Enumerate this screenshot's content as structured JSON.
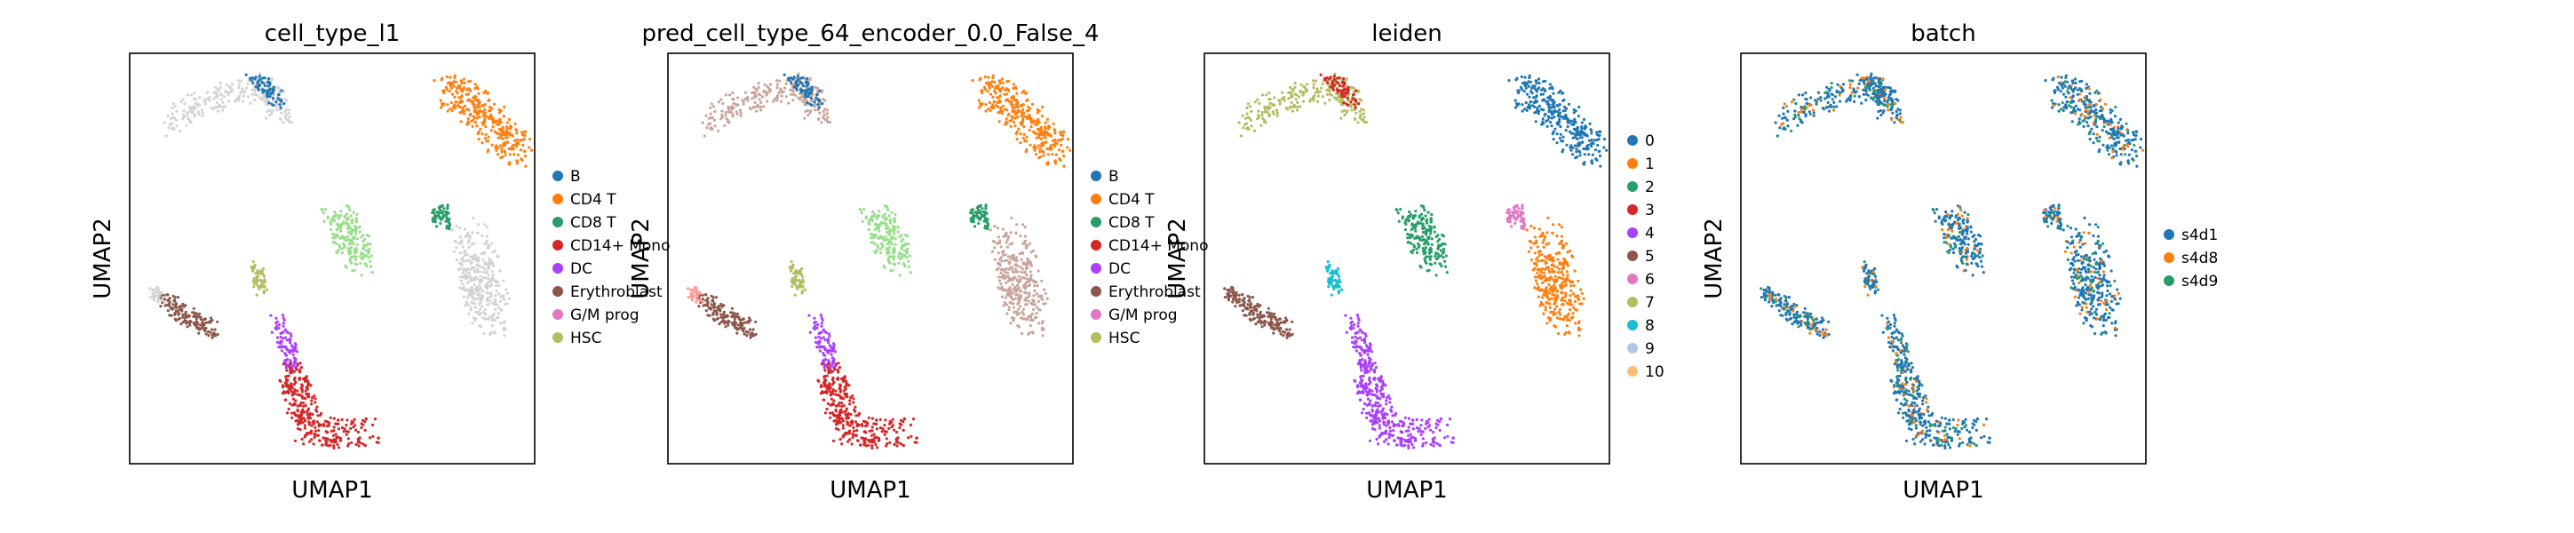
{
  "colors": {
    "tab10": [
      "#1f77b4",
      "#ff7f0e",
      "#279e68",
      "#d62728",
      "#aa40fc",
      "#8c564b",
      "#e377c2",
      "#b5bd61",
      "#17becf",
      "#aec7e8",
      "#ffbb78"
    ],
    "unlabeled": "#d3d3d3",
    "pred_c1": "#c9a59c",
    "pred_c2": "#98df8a",
    "pred_c3": "#ff9896",
    "pred_c4": "#f7b6d2"
  },
  "chart_data": [
    {
      "type": "scatter",
      "title": "cell_type_l1",
      "xlabel": "UMAP1",
      "ylabel": "UMAP2",
      "legend": {
        "placement": "right",
        "entries": [
          {
            "label": "B",
            "color": "#1f77b4"
          },
          {
            "label": "CD4 T",
            "color": "#ff7f0e"
          },
          {
            "label": "CD8 T",
            "color": "#279e68"
          },
          {
            "label": "CD14+ Mono",
            "color": "#d62728"
          },
          {
            "label": "DC",
            "color": "#aa40fc"
          },
          {
            "label": "Erythroblast",
            "color": "#8c564b"
          },
          {
            "label": "G/M prog",
            "color": "#e377c2"
          },
          {
            "label": "HSC",
            "color": "#b5bd61"
          }
        ]
      },
      "clusters": [
        {
          "name": "top-left arm",
          "color": "#d3d3d3"
        },
        {
          "name": "top-left tip",
          "color": "#1f77b4"
        },
        {
          "name": "top-right blob",
          "color": "#ff7f0e"
        },
        {
          "name": "center blob",
          "color": "#98df8a"
        },
        {
          "name": "right small",
          "color": "#279e68"
        },
        {
          "name": "right stream",
          "color": "#d3d3d3"
        },
        {
          "name": "left arm",
          "color": "#8c564b"
        },
        {
          "name": "left tip",
          "color": "#d3d3d3"
        },
        {
          "name": "small mid",
          "color": "#b5bd61"
        },
        {
          "name": "purple link",
          "color": "#aa40fc"
        },
        {
          "name": "bottom plume",
          "color": "#d62728"
        }
      ]
    },
    {
      "type": "scatter",
      "title": "pred_cell_type_64_encoder_0.0_False_4",
      "xlabel": "UMAP1",
      "ylabel": "UMAP2",
      "legend": {
        "placement": "right",
        "entries": [
          {
            "label": "B",
            "color": "#1f77b4"
          },
          {
            "label": "CD4 T",
            "color": "#ff7f0e"
          },
          {
            "label": "CD8 T",
            "color": "#279e68"
          },
          {
            "label": "CD14+ Mono",
            "color": "#d62728"
          },
          {
            "label": "DC",
            "color": "#aa40fc"
          },
          {
            "label": "Erythroblast",
            "color": "#8c564b"
          },
          {
            "label": "G/M prog",
            "color": "#e377c2"
          },
          {
            "label": "HSC",
            "color": "#b5bd61"
          }
        ]
      },
      "clusters": [
        {
          "name": "top-left arm",
          "color": "#c9a59c"
        },
        {
          "name": "top-left tip",
          "color": "#1f77b4"
        },
        {
          "name": "top-right blob",
          "color": "#ff7f0e"
        },
        {
          "name": "center blob",
          "color": "#98df8a"
        },
        {
          "name": "right small",
          "color": "#279e68"
        },
        {
          "name": "right stream",
          "color": "#c9a59c"
        },
        {
          "name": "left arm",
          "color": "#8c564b"
        },
        {
          "name": "left tip",
          "color": "#ff9896"
        },
        {
          "name": "small mid",
          "color": "#b5bd61"
        },
        {
          "name": "purple link",
          "color": "#aa40fc"
        },
        {
          "name": "bottom plume",
          "color": "#d62728"
        }
      ]
    },
    {
      "type": "scatter",
      "title": "leiden",
      "xlabel": "UMAP1",
      "ylabel": "UMAP2",
      "legend": {
        "placement": "right",
        "entries": [
          {
            "label": "0",
            "color": "#1f77b4"
          },
          {
            "label": "1",
            "color": "#ff7f0e"
          },
          {
            "label": "2",
            "color": "#279e68"
          },
          {
            "label": "3",
            "color": "#d62728"
          },
          {
            "label": "4",
            "color": "#aa40fc"
          },
          {
            "label": "5",
            "color": "#8c564b"
          },
          {
            "label": "6",
            "color": "#e377c2"
          },
          {
            "label": "7",
            "color": "#b5bd61"
          },
          {
            "label": "8",
            "color": "#17becf"
          },
          {
            "label": "9",
            "color": "#aec7e8"
          },
          {
            "label": "10",
            "color": "#ffbb78"
          }
        ]
      },
      "clusters": [
        {
          "name": "top-left arm",
          "color": "#b5bd61"
        },
        {
          "name": "top-left tip",
          "color": "#d62728"
        },
        {
          "name": "top-right blob",
          "color": "#1f77b4"
        },
        {
          "name": "center blob",
          "color": "#279e68"
        },
        {
          "name": "right small",
          "color": "#e377c2"
        },
        {
          "name": "right stream",
          "color": "#ff7f0e"
        },
        {
          "name": "left arm",
          "color": "#8c564b"
        },
        {
          "name": "left tip",
          "color": "#8c564b"
        },
        {
          "name": "small mid",
          "color": "#17becf"
        },
        {
          "name": "purple link",
          "color": "#aa40fc"
        },
        {
          "name": "bottom plume",
          "color": "#aa40fc"
        }
      ]
    },
    {
      "type": "scatter",
      "title": "batch",
      "xlabel": "UMAP1",
      "ylabel": "UMAP2",
      "legend": {
        "placement": "right",
        "entries": [
          {
            "label": "s4d1",
            "color": "#1f77b4"
          },
          {
            "label": "s4d8",
            "color": "#ff7f0e"
          },
          {
            "label": "s4d9",
            "color": "#279e68"
          }
        ]
      },
      "clusters": [
        {
          "name": "top-left arm",
          "color": "#1f77b4"
        },
        {
          "name": "top-left tip",
          "color": "#1f77b4"
        },
        {
          "name": "top-right blob",
          "color": "#1f77b4"
        },
        {
          "name": "center blob",
          "color": "#1f77b4"
        },
        {
          "name": "right small",
          "color": "#1f77b4"
        },
        {
          "name": "right stream",
          "color": "#1f77b4"
        },
        {
          "name": "left arm",
          "color": "#1f77b4"
        },
        {
          "name": "left tip",
          "color": "#1f77b4"
        },
        {
          "name": "small mid",
          "color": "#1f77b4"
        },
        {
          "name": "purple link",
          "color": "#1f77b4"
        },
        {
          "name": "bottom plume",
          "color": "#1f77b4"
        }
      ]
    }
  ]
}
